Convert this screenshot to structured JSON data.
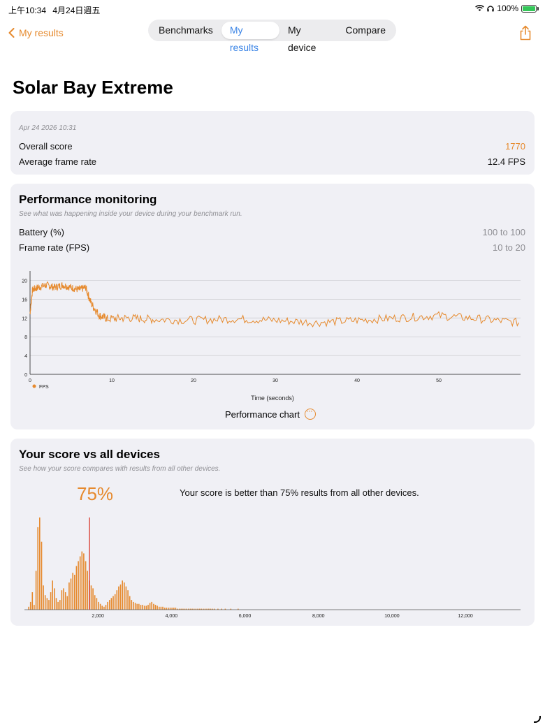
{
  "status": {
    "time": "上午10:34",
    "date": "4月24日週五",
    "battery_pct": "100%"
  },
  "nav": {
    "back_label": "My results",
    "tabs": [
      "Benchmarks",
      "My results",
      "My device",
      "Compare"
    ],
    "active_tab": "My results"
  },
  "page_title": "Solar Bay Extreme",
  "summary": {
    "date": "Apr 24 2026 10:31",
    "overall_label": "Overall score",
    "overall_value": "1770",
    "fps_label": "Average frame rate",
    "fps_value": "12.4 FPS"
  },
  "perf": {
    "title": "Performance monitoring",
    "subtitle": "See what was happening inside your device during your benchmark run.",
    "battery_label": "Battery (%)",
    "battery_range": "100 to 100",
    "fps_label": "Frame rate (FPS)",
    "fps_range": "10 to 20",
    "chart_button": "Performance chart"
  },
  "compare": {
    "title": "Your score vs all devices",
    "subtitle": "See how your score compares with results from all other devices.",
    "percent": "75%",
    "text": "Your score is better than 75% results from all other devices."
  },
  "colors": {
    "accent": "#e68a2e",
    "marker": "#d9453a",
    "card": "#f0f0f5"
  },
  "chart_data": [
    {
      "type": "line",
      "xlabel": "Time (seconds)",
      "ylabel": "",
      "xlim": [
        0,
        60
      ],
      "ylim": [
        0,
        22
      ],
      "xticks": [
        0,
        10,
        20,
        30,
        40,
        50
      ],
      "yticks": [
        0,
        4,
        8,
        12,
        16,
        20
      ],
      "legend": "bottom-left",
      "grid": true,
      "series": [
        {
          "name": "FPS",
          "x": [
            0,
            0.3,
            1,
            2,
            3,
            4,
            5,
            6,
            6.8,
            7.5,
            8.5,
            9.5,
            12,
            15,
            20,
            25,
            30,
            35,
            40,
            45,
            50,
            55,
            59.8
          ],
          "values": [
            13,
            18,
            18.5,
            19,
            18.5,
            19,
            18.5,
            18,
            18.5,
            15,
            12.5,
            11.8,
            12,
            11.7,
            11.5,
            11.8,
            11.5,
            11,
            11.5,
            12,
            12.5,
            11.8,
            11
          ]
        }
      ]
    },
    {
      "type": "bar",
      "title": "",
      "xlabel": "",
      "ylabel": "",
      "xlim": [
        0,
        13500
      ],
      "xticks": [
        2000,
        4000,
        6000,
        8000,
        10000,
        12000
      ],
      "xtick_labels": [
        "2,000",
        "4,000",
        "6,000",
        "8,000",
        "10,000",
        "12,000"
      ],
      "your_score": 1770,
      "bins_start": 0,
      "bin_width": 50,
      "values": [
        0,
        0,
        3,
        8,
        18,
        5,
        40,
        85,
        95,
        70,
        25,
        15,
        12,
        10,
        18,
        30,
        22,
        12,
        8,
        10,
        20,
        22,
        18,
        14,
        28,
        32,
        38,
        36,
        45,
        50,
        55,
        60,
        58,
        50,
        40,
        30,
        25,
        22,
        15,
        12,
        8,
        6,
        4,
        3,
        5,
        8,
        10,
        12,
        14,
        16,
        20,
        24,
        26,
        30,
        28,
        24,
        20,
        14,
        10,
        8,
        7,
        6,
        6,
        5,
        5,
        4,
        4,
        5,
        7,
        8,
        6,
        5,
        4,
        3,
        3,
        3,
        2,
        2,
        2,
        2,
        2,
        2,
        2,
        1,
        1,
        1,
        1,
        1,
        1,
        1,
        1,
        1,
        1,
        1,
        1,
        1,
        1,
        1,
        1,
        1,
        1,
        1,
        1,
        1,
        0,
        1,
        0,
        1,
        0,
        1,
        0,
        0,
        1,
        0,
        0,
        0,
        1,
        0,
        0,
        0,
        0,
        0,
        0,
        0,
        0,
        0,
        0,
        0,
        0,
        0,
        0,
        0,
        0,
        0,
        0,
        0,
        0,
        0,
        0,
        0,
        0,
        0,
        0,
        0,
        0,
        0,
        0,
        0,
        0,
        0,
        0,
        0,
        0,
        0,
        0,
        0,
        0,
        0,
        0,
        0,
        0,
        0,
        0,
        0,
        0,
        0,
        0,
        0,
        0,
        0,
        0,
        0,
        0,
        0,
        0,
        0,
        0,
        0,
        0,
        0,
        0,
        0,
        0,
        0,
        0,
        0,
        0,
        0,
        0,
        0,
        0,
        0,
        0,
        0,
        0,
        0,
        0,
        0,
        0,
        0,
        0,
        0,
        0,
        0
      ]
    }
  ]
}
